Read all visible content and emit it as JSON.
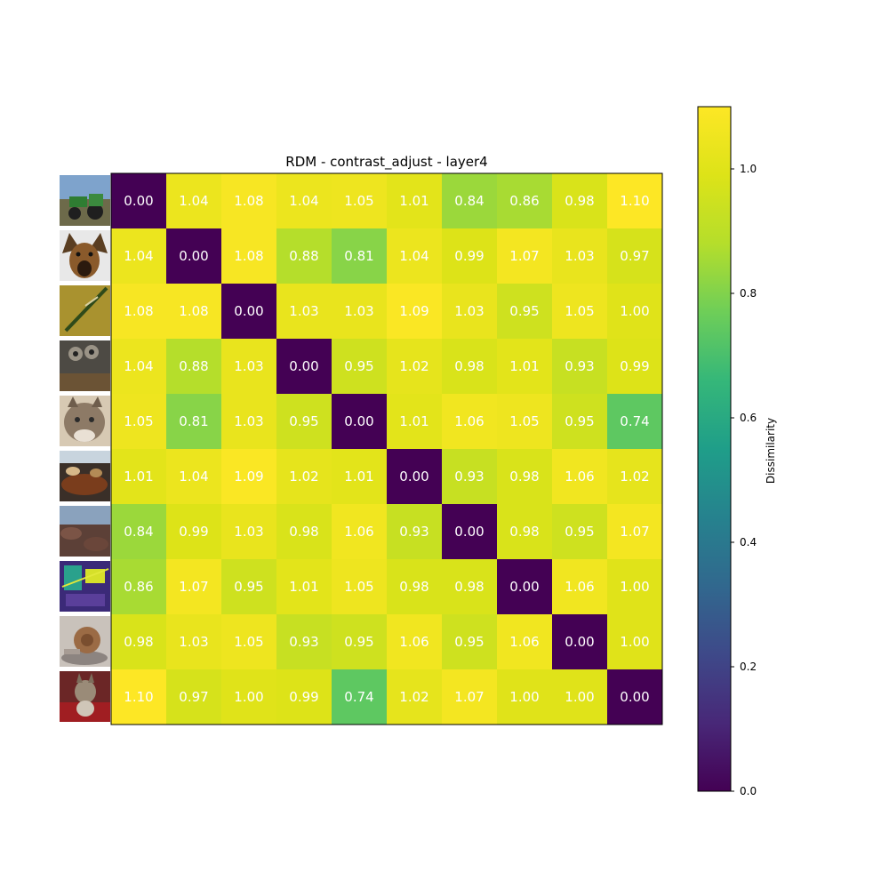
{
  "chart_data": {
    "type": "heatmap",
    "title": "RDM - contrast_adjust - layer4",
    "colorbar_label": "Dissimilarity",
    "colormap": "viridis",
    "vmin": 0.0,
    "vmax": 1.1,
    "colorbar_ticks": [
      "0.0",
      "0.2",
      "0.4",
      "0.6",
      "0.8",
      "1.0"
    ],
    "colorbar_tick_values": [
      0.0,
      0.2,
      0.4,
      0.6,
      0.8,
      1.0
    ],
    "row_labels": [
      "tractor",
      "dog",
      "dragonfly",
      "owls",
      "cat",
      "food",
      "rocks",
      "poster",
      "snail",
      "kitten"
    ],
    "matrix": [
      [
        0.0,
        1.04,
        1.08,
        1.04,
        1.05,
        1.01,
        0.84,
        0.86,
        0.98,
        1.1
      ],
      [
        1.04,
        0.0,
        1.08,
        0.88,
        0.81,
        1.04,
        0.99,
        1.07,
        1.03,
        0.97
      ],
      [
        1.08,
        1.08,
        0.0,
        1.03,
        1.03,
        1.09,
        1.03,
        0.95,
        1.05,
        1.0
      ],
      [
        1.04,
        0.88,
        1.03,
        0.0,
        0.95,
        1.02,
        0.98,
        1.01,
        0.93,
        0.99
      ],
      [
        1.05,
        0.81,
        1.03,
        0.95,
        0.0,
        1.01,
        1.06,
        1.05,
        0.95,
        0.74
      ],
      [
        1.01,
        1.04,
        1.09,
        1.02,
        1.01,
        0.0,
        0.93,
        0.98,
        1.06,
        1.02
      ],
      [
        0.84,
        0.99,
        1.03,
        0.98,
        1.06,
        0.93,
        0.0,
        0.98,
        0.95,
        1.07
      ],
      [
        0.86,
        1.07,
        0.95,
        1.01,
        1.05,
        0.98,
        0.98,
        0.0,
        1.06,
        1.0
      ],
      [
        0.98,
        1.03,
        1.05,
        0.93,
        0.95,
        1.06,
        0.95,
        1.06,
        0.0,
        1.0
      ],
      [
        1.1,
        0.97,
        1.0,
        0.99,
        0.74,
        1.02,
        1.07,
        1.0,
        1.0,
        0.0
      ]
    ],
    "cell_labels": [
      [
        "0.00",
        "1.04",
        "1.08",
        "1.04",
        "1.05",
        "1.01",
        "0.84",
        "0.86",
        "0.98",
        "1.10"
      ],
      [
        "1.04",
        "0.00",
        "1.08",
        "0.88",
        "0.81",
        "1.04",
        "0.99",
        "1.07",
        "1.03",
        "0.97"
      ],
      [
        "1.08",
        "1.08",
        "0.00",
        "1.03",
        "1.03",
        "1.09",
        "1.03",
        "0.95",
        "1.05",
        "1.00"
      ],
      [
        "1.04",
        "0.88",
        "1.03",
        "0.00",
        "0.95",
        "1.02",
        "0.98",
        "1.01",
        "0.93",
        "0.99"
      ],
      [
        "1.05",
        "0.81",
        "1.03",
        "0.95",
        "0.00",
        "1.01",
        "1.06",
        "1.05",
        "0.95",
        "0.74"
      ],
      [
        "1.01",
        "1.04",
        "1.09",
        "1.02",
        "1.01",
        "0.00",
        "0.93",
        "0.98",
        "1.06",
        "1.02"
      ],
      [
        "0.84",
        "0.99",
        "1.03",
        "0.98",
        "1.06",
        "0.93",
        "0.00",
        "0.98",
        "0.95",
        "1.07"
      ],
      [
        "0.86",
        "1.07",
        "0.95",
        "1.01",
        "1.05",
        "0.98",
        "0.98",
        "0.00",
        "1.06",
        "1.00"
      ],
      [
        "0.98",
        "1.03",
        "1.05",
        "0.93",
        "0.95",
        "1.06",
        "0.95",
        "1.06",
        "0.00",
        "1.00"
      ],
      [
        "1.10",
        "0.97",
        "1.00",
        "0.99",
        "0.74",
        "1.02",
        "1.07",
        "1.00",
        "1.00",
        "0.00"
      ]
    ],
    "row_image_icons": [
      "tractor-thumbnail-icon",
      "dog-thumbnail-icon",
      "dragonfly-thumbnail-icon",
      "owls-thumbnail-icon",
      "cat-thumbnail-icon",
      "food-thumbnail-icon",
      "rocks-thumbnail-icon",
      "poster-thumbnail-icon",
      "snail-thumbnail-icon",
      "kitten-thumbnail-icon"
    ]
  }
}
